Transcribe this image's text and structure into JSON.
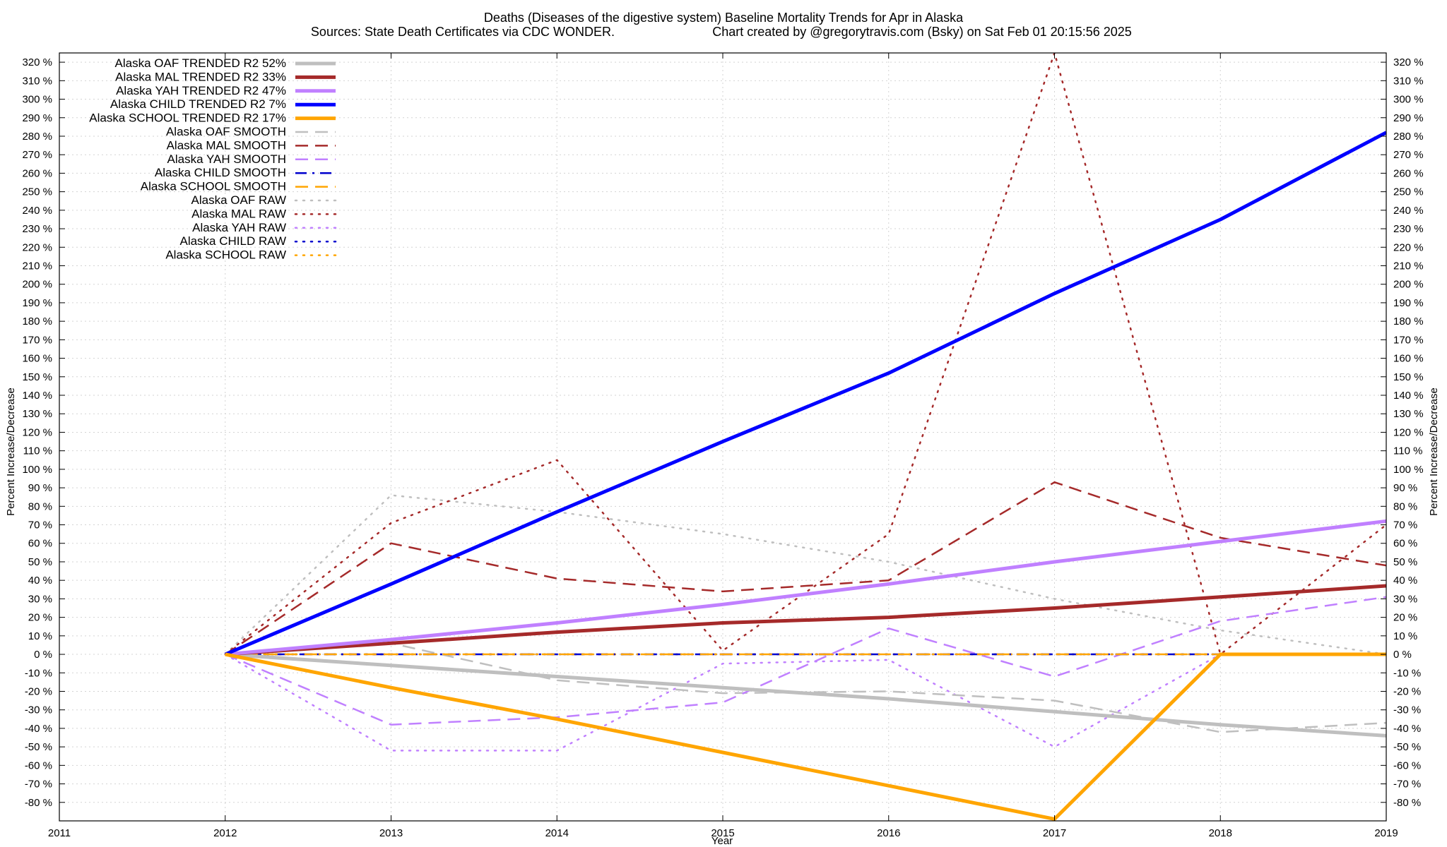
{
  "chart_data": {
    "type": "line",
    "title": "Deaths (Diseases of the digestive system)  Baseline Mortality Trends for Apr in Alaska",
    "subtitle_left": "Sources: State Death Certificates via CDC WONDER.",
    "subtitle_right": "Chart created by @gregorytravis.com (Bsky) on Sat Feb 01 20:15:56 2025",
    "xlabel": "Year",
    "ylabel": "Percent Increase/Decrease",
    "xlim": [
      2011,
      2019
    ],
    "ylim": [
      -90,
      325
    ],
    "xticks": [
      2011,
      2012,
      2013,
      2014,
      2015,
      2016,
      2017,
      2018,
      2019
    ],
    "xtick_labels": [
      "2011",
      "2012",
      "2013",
      "2014",
      "2015",
      "2016",
      "2017",
      "2018",
      "2019"
    ],
    "yticks": [
      -80,
      -70,
      -60,
      -50,
      -40,
      -30,
      -20,
      -10,
      0,
      10,
      20,
      30,
      40,
      50,
      60,
      70,
      80,
      90,
      100,
      110,
      120,
      130,
      140,
      150,
      160,
      170,
      180,
      190,
      200,
      210,
      220,
      230,
      240,
      250,
      260,
      270,
      280,
      290,
      300,
      310,
      320
    ],
    "ytick_labels": [
      "-80 %",
      "-70 %",
      "-60 %",
      "-50 %",
      "-40 %",
      "-30 %",
      "-20 %",
      "-10 %",
      "0 %",
      "10 %",
      "20 %",
      "30 %",
      "40 %",
      "50 %",
      "60 %",
      "70 %",
      "80 %",
      "90 %",
      "100 %",
      "110 %",
      "120 %",
      "130 %",
      "140 %",
      "150 %",
      "160 %",
      "170 %",
      "180 %",
      "190 %",
      "200 %",
      "210 %",
      "220 %",
      "230 %",
      "240 %",
      "250 %",
      "260 %",
      "270 %",
      "280 %",
      "290 %",
      "300 %",
      "310 %",
      "320 %"
    ],
    "grid": true,
    "legend_position": "top-left",
    "x": [
      2012,
      2013,
      2014,
      2015,
      2016,
      2017,
      2018,
      2019
    ],
    "series": [
      {
        "name": "Alaska OAF TRENDED R2  52%",
        "style": "solid",
        "width": 5,
        "color": "#bfbfbf",
        "values": [
          0,
          -6,
          -12,
          -18,
          -24,
          -31,
          -38,
          -44
        ]
      },
      {
        "name": "Alaska MAL TRENDED R2  33%",
        "style": "solid",
        "width": 5,
        "color": "#a52a2a",
        "values": [
          0,
          6,
          12,
          17,
          20,
          25,
          31,
          37
        ]
      },
      {
        "name": "Alaska YAH TRENDED R2  47%",
        "style": "solid",
        "width": 5,
        "color": "#c080ff",
        "values": [
          0,
          8,
          17,
          27,
          38,
          50,
          61,
          72
        ]
      },
      {
        "name": "Alaska CHILD TRENDED R2  7%",
        "style": "solid",
        "width": 5,
        "color": "#0000ff",
        "values": [
          0,
          38,
          77,
          115,
          152,
          195,
          235,
          282
        ]
      },
      {
        "name": "Alaska SCHOOL TRENDED R2  17%",
        "style": "solid",
        "width": 5,
        "color": "#ffa500",
        "values": [
          0,
          -18,
          -35,
          -53,
          -71,
          -89,
          0,
          0
        ]
      },
      {
        "name": "Alaska OAF SMOOTH",
        "style": "dashed",
        "width": 2.5,
        "color": "#bfbfbf",
        "values": [
          0,
          6,
          -14,
          -21,
          -20,
          -25,
          -42,
          -37
        ]
      },
      {
        "name": "Alaska MAL SMOOTH",
        "style": "dashed",
        "width": 2.5,
        "color": "#a52a2a",
        "values": [
          0,
          60,
          41,
          34,
          40,
          93,
          63,
          48
        ]
      },
      {
        "name": "Alaska YAH SMOOTH",
        "style": "dashed",
        "width": 2.5,
        "color": "#c080ff",
        "values": [
          0,
          -38,
          -34,
          -26,
          14,
          -12,
          18,
          31
        ]
      },
      {
        "name": "Alaska CHILD SMOOTH",
        "style": "dashdot",
        "width": 2.5,
        "color": "#0000cd",
        "values": [
          0,
          0,
          0,
          0,
          0,
          0,
          0,
          0
        ]
      },
      {
        "name": "Alaska SCHOOL SMOOTH",
        "style": "dashed",
        "width": 2.5,
        "color": "#ffa500",
        "values": [
          0,
          0,
          0,
          0,
          0,
          0,
          0,
          0
        ]
      },
      {
        "name": "Alaska OAF RAW",
        "style": "dotted",
        "width": 2.5,
        "color": "#bfbfbf",
        "values": [
          0,
          86,
          77,
          65,
          50,
          30,
          13,
          0
        ]
      },
      {
        "name": "Alaska MAL RAW",
        "style": "dotted",
        "width": 2.5,
        "color": "#a52a2a",
        "values": [
          0,
          71,
          105,
          2,
          65,
          325,
          0,
          70
        ]
      },
      {
        "name": "Alaska YAH RAW",
        "style": "dotted",
        "width": 2.5,
        "color": "#c080ff",
        "values": [
          0,
          -52,
          -52,
          -5,
          -3,
          -50,
          0,
          0
        ]
      },
      {
        "name": "Alaska CHILD RAW",
        "style": "dotted",
        "width": 2.5,
        "color": "#0000cd",
        "values": [
          0,
          0,
          0,
          0,
          0,
          0,
          0,
          0
        ]
      },
      {
        "name": "Alaska SCHOOL RAW",
        "style": "dotted",
        "width": 2.5,
        "color": "#ffa500",
        "values": [
          0,
          0,
          0,
          0,
          0,
          0,
          0,
          0
        ]
      }
    ]
  }
}
